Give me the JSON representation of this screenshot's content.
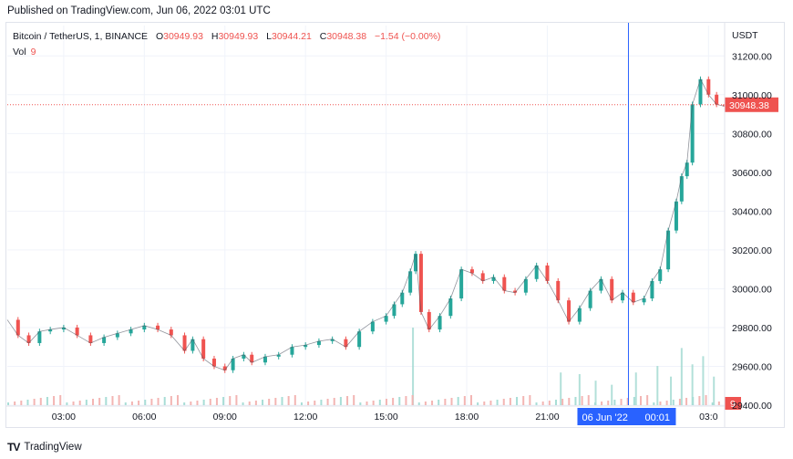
{
  "header": {
    "published": "Published on TradingView.com, Jun 06, 2022 03:01 UTC"
  },
  "legend": {
    "symbol": "Bitcoin / TetherUS, 1, BINANCE",
    "open_label": "O",
    "open": "30949.93",
    "high_label": "H",
    "high": "30949.93",
    "low_label": "L",
    "low": "30944.21",
    "close_label": "C",
    "close": "30948.38",
    "change": "−1.54 (−0.00%)",
    "vol_label": "Vol",
    "vol": "9"
  },
  "price_axis": {
    "currency": "USDT",
    "last_price_label": "30948.38",
    "last_volume_label": "9"
  },
  "crosshair": {
    "date_label": "06 Jun '22",
    "time_label": "00:01"
  },
  "footer": {
    "brand": "TradingView",
    "logo_glyph": "TV"
  },
  "colors": {
    "up": "#26a69a",
    "down": "#ef5350",
    "crosshair": "#2962ff",
    "grid": "#f0f3fa",
    "text": "#131722"
  },
  "chart_data": {
    "type": "candlestick",
    "title": "Bitcoin / TetherUS, 1, BINANCE",
    "ylabel": "USDT",
    "ylim": [
      29400,
      31300
    ],
    "y_ticks": [
      "31200.00",
      "31000.00",
      "30800.00",
      "30600.00",
      "30400.00",
      "30200.00",
      "30000.00",
      "29800.00",
      "29600.00",
      "29400.00"
    ],
    "y_tick_values": [
      31200,
      31000,
      30800,
      30600,
      30400,
      30200,
      30000,
      29800,
      29600,
      29400
    ],
    "x_ticks": [
      "03:00",
      "06:00",
      "09:00",
      "12:00",
      "15:00",
      "18:00",
      "21:00",
      "03:0"
    ],
    "x_tick_hours": [
      3,
      6,
      9,
      12,
      15,
      18,
      21,
      27
    ],
    "x_range_hours": [
      0.9,
      27.6
    ],
    "last_price": 30948.38,
    "crosshair_hour": 24.02,
    "grid": true,
    "price_series": {
      "name": "close",
      "x_hours": [
        0.9,
        1.3,
        1.7,
        2.1,
        2.5,
        3.0,
        3.5,
        4.0,
        4.5,
        5.0,
        5.5,
        6.0,
        6.5,
        7.0,
        7.5,
        7.8,
        8.2,
        8.6,
        9.0,
        9.3,
        9.7,
        10.0,
        10.5,
        11.0,
        11.5,
        12.0,
        12.5,
        13.0,
        13.5,
        14.0,
        14.5,
        15.0,
        15.3,
        15.6,
        15.9,
        16.1,
        16.3,
        16.6,
        17.0,
        17.4,
        17.8,
        18.2,
        18.6,
        19.0,
        19.4,
        19.8,
        20.2,
        20.6,
        21.0,
        21.4,
        21.8,
        22.2,
        22.6,
        23.0,
        23.4,
        23.8,
        24.2,
        24.6,
        24.9,
        25.2,
        25.5,
        25.8,
        26.0,
        26.2,
        26.4,
        26.7,
        27.0,
        27.3,
        27.6
      ],
      "values": [
        29840,
        29760,
        29720,
        29780,
        29790,
        29800,
        29760,
        29720,
        29750,
        29770,
        29790,
        29810,
        29790,
        29760,
        29680,
        29740,
        29640,
        29600,
        29580,
        29640,
        29660,
        29620,
        29650,
        29660,
        29700,
        29710,
        29730,
        29740,
        29700,
        29780,
        29830,
        29860,
        29920,
        29980,
        30090,
        30180,
        29880,
        29790,
        29860,
        29950,
        30100,
        30080,
        30040,
        30060,
        29990,
        29980,
        30050,
        30120,
        30040,
        29940,
        29830,
        29900,
        29990,
        30050,
        29940,
        29980,
        29930,
        29950,
        30040,
        30100,
        30300,
        30450,
        30580,
        30650,
        30950,
        31080,
        31000,
        30950,
        30940
      ]
    },
    "volume_series": {
      "name": "Vol",
      "x_hours": [
        16.0,
        21.5,
        22.2,
        22.8,
        23.4,
        24.3,
        25.1,
        25.6,
        26.0,
        26.4,
        26.8,
        27.2
      ],
      "values": [
        95,
        40,
        38,
        30,
        25,
        40,
        48,
        35,
        70,
        50,
        60,
        35
      ]
    }
  }
}
